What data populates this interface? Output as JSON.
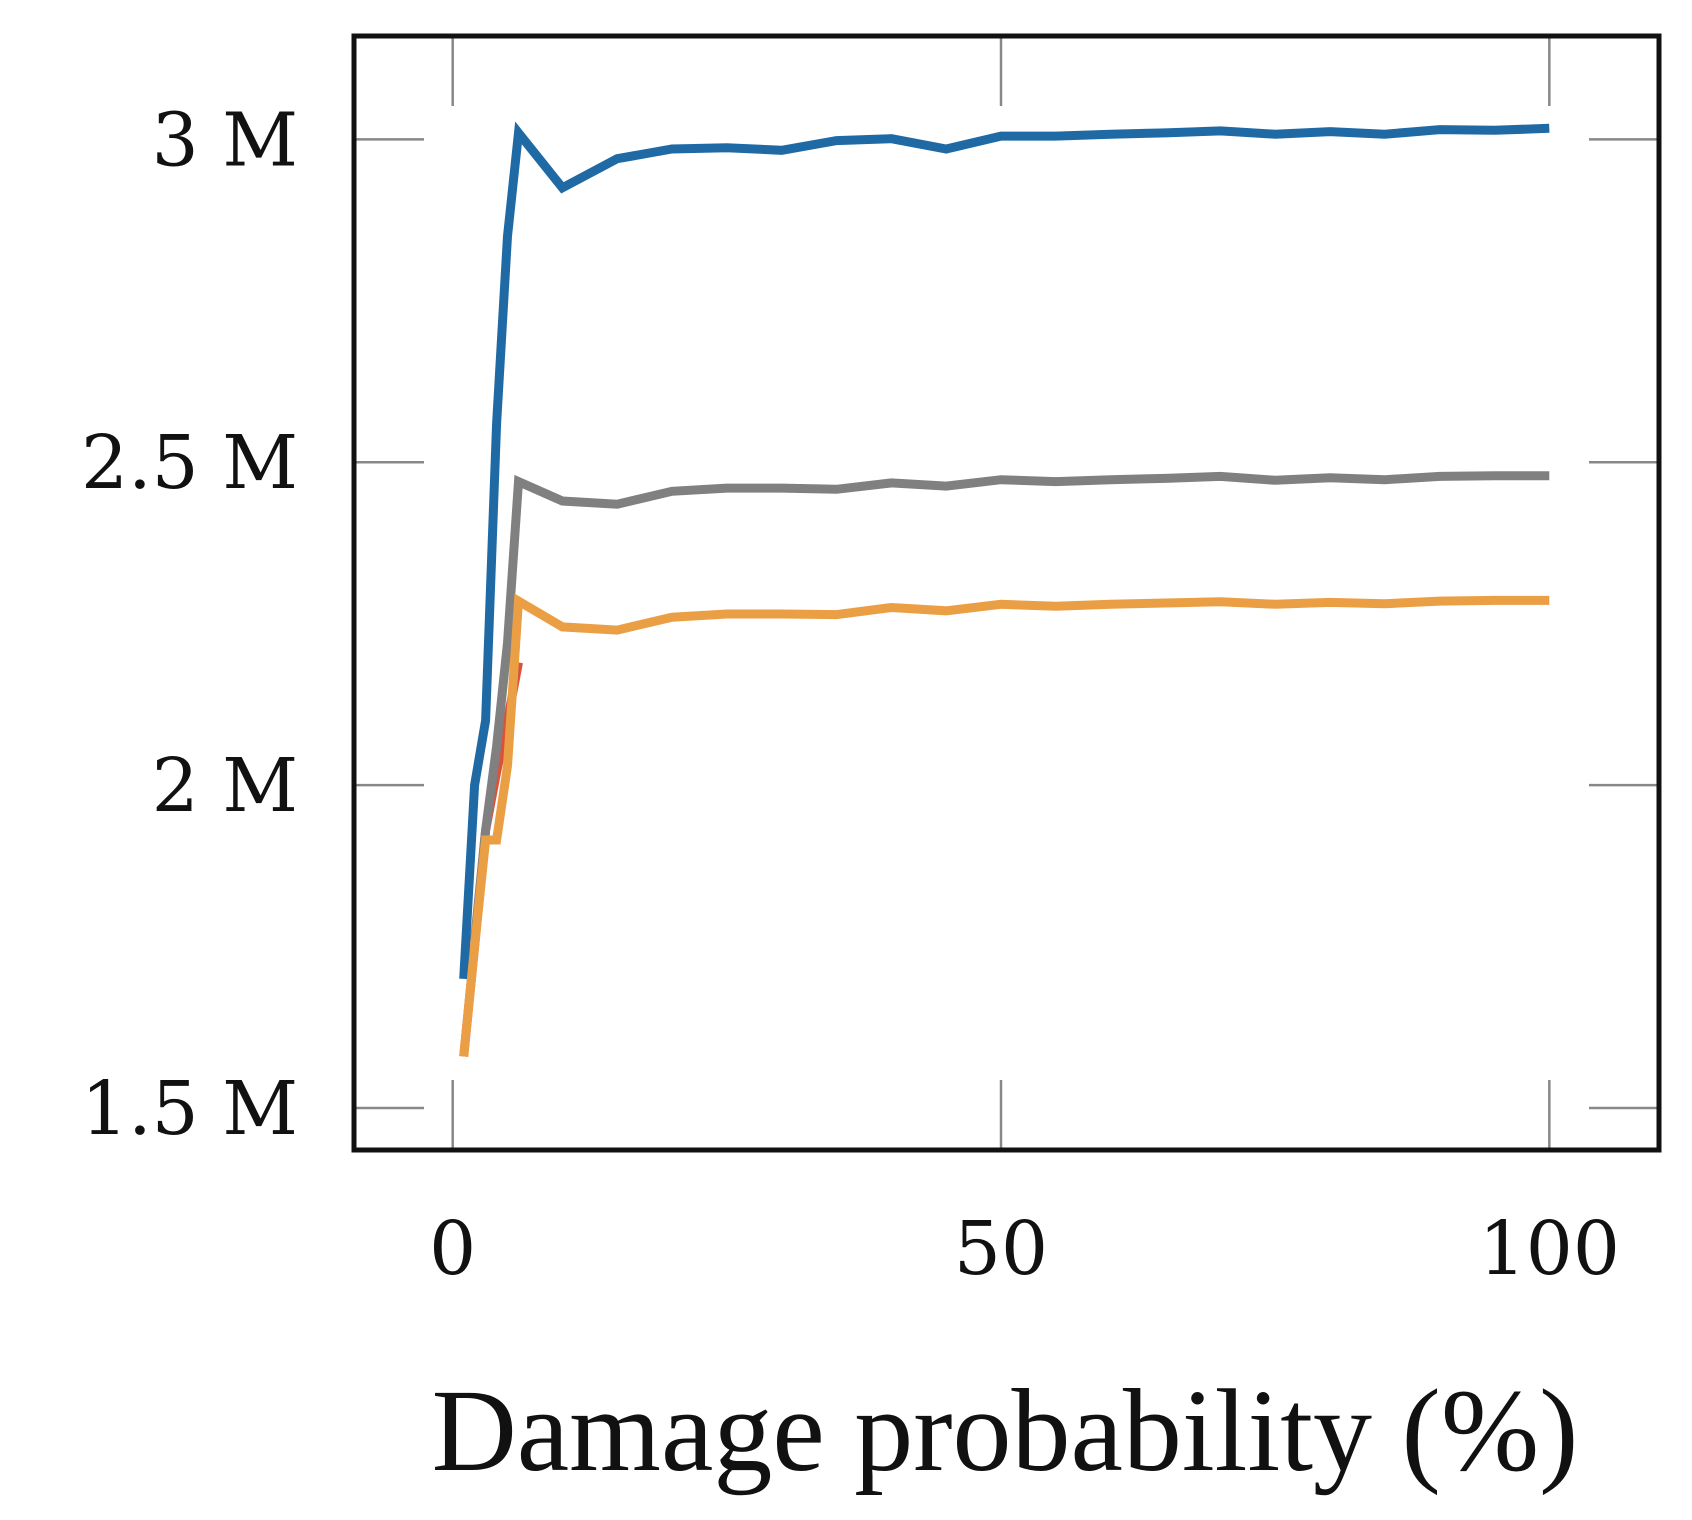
{
  "chart_data": {
    "type": "line",
    "title": "",
    "xlabel": "Damage probability (%)",
    "ylabel": "",
    "xlim": [
      -9,
      110
    ],
    "ylim": [
      1.435,
      3.16
    ],
    "xticks": [
      {
        "value": 0,
        "label": "0"
      },
      {
        "value": 50,
        "label": "50"
      },
      {
        "value": 100,
        "label": "100"
      }
    ],
    "yticks": [
      {
        "value": 1.5,
        "label": "1.5 M"
      },
      {
        "value": 2.0,
        "label": "2 M"
      },
      {
        "value": 2.5,
        "label": "2.5 M"
      },
      {
        "value": 3.0,
        "label": "3 M"
      }
    ],
    "y_unit": "millions",
    "grid": false,
    "legend": "none",
    "series": [
      {
        "name": "red",
        "color": "#d9533b",
        "x": [
          1,
          2,
          3,
          4,
          5,
          6
        ],
        "y": [
          1.58,
          1.75,
          1.93,
          2.02,
          2.1,
          2.19
        ]
      },
      {
        "name": "gray",
        "color": "#808080",
        "x": [
          2,
          3,
          4,
          5,
          6,
          10,
          15,
          20,
          25,
          30,
          35,
          40,
          45,
          50,
          55,
          60,
          65,
          70,
          75,
          80,
          85,
          90,
          95,
          100
        ],
        "y": [
          1.76,
          1.93,
          2.06,
          2.22,
          2.47,
          2.44,
          2.435,
          2.455,
          2.46,
          2.46,
          2.458,
          2.468,
          2.463,
          2.473,
          2.47,
          2.473,
          2.475,
          2.478,
          2.472,
          2.476,
          2.473,
          2.478,
          2.479,
          2.479
        ]
      },
      {
        "name": "blue",
        "color": "#1f6aa5",
        "x": [
          1,
          2,
          3,
          4,
          5,
          6,
          10,
          15,
          20,
          25,
          30,
          35,
          40,
          45,
          50,
          55,
          60,
          65,
          70,
          75,
          80,
          85,
          90,
          95,
          100
        ],
        "y": [
          1.7,
          2.0,
          2.1,
          2.56,
          2.85,
          3.01,
          2.925,
          2.97,
          2.985,
          2.987,
          2.983,
          2.998,
          3.001,
          2.985,
          3.005,
          3.005,
          3.008,
          3.01,
          3.013,
          3.008,
          3.012,
          3.008,
          3.015,
          3.014,
          3.017
        ]
      },
      {
        "name": "orange",
        "color": "#eb9f45",
        "x": [
          1,
          2,
          3,
          4,
          5,
          6,
          10,
          15,
          20,
          25,
          30,
          35,
          40,
          45,
          50,
          55,
          60,
          65,
          70,
          75,
          80,
          85,
          90,
          95,
          100
        ],
        "y": [
          1.58,
          1.75,
          1.915,
          1.915,
          2.03,
          2.285,
          2.245,
          2.24,
          2.26,
          2.265,
          2.265,
          2.264,
          2.275,
          2.27,
          2.28,
          2.277,
          2.28,
          2.282,
          2.284,
          2.28,
          2.283,
          2.281,
          2.285,
          2.286,
          2.286
        ]
      }
    ]
  }
}
